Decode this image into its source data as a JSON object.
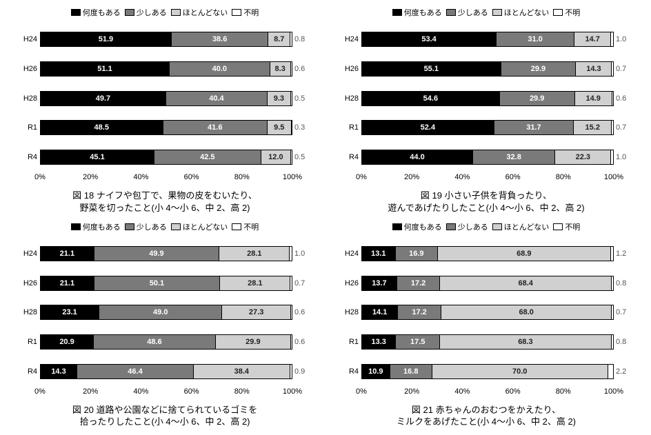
{
  "legend": {
    "items": [
      {
        "label": "何度もある",
        "color": "#000000",
        "text": "#ffffff"
      },
      {
        "label": "少しある",
        "color": "#7a7a7a",
        "text": "#ffffff"
      },
      {
        "label": "ほとんどない",
        "color": "#d0d0d0",
        "text": "#222222"
      },
      {
        "label": "不明",
        "color": "#ffffff",
        "text": "#555555"
      }
    ]
  },
  "xaxis": {
    "ticks": [
      "0%",
      "20%",
      "40%",
      "60%",
      "80%",
      "100%"
    ],
    "positions": [
      0,
      20,
      40,
      60,
      80,
      100
    ]
  },
  "panels": [
    {
      "id": "fig18",
      "caption_line1": "図 18 ナイフや包丁で、果物の皮をむいたり、",
      "caption_line2": "野菜を切ったこと(小 4～小 6、中 2、高 2)",
      "categories": [
        "H24",
        "H26",
        "H28",
        "R1",
        "R4"
      ],
      "rows": [
        {
          "values": [
            51.9,
            38.6,
            8.7,
            0.8
          ]
        },
        {
          "values": [
            51.1,
            40.0,
            8.3,
            0.6
          ]
        },
        {
          "values": [
            49.7,
            40.4,
            9.3,
            0.5
          ]
        },
        {
          "values": [
            48.5,
            41.6,
            9.5,
            0.3
          ]
        },
        {
          "values": [
            45.1,
            42.5,
            12.0,
            0.5
          ]
        }
      ]
    },
    {
      "id": "fig19",
      "caption_line1": "図 19 小さい子供を背負ったり、",
      "caption_line2": "遊んであげたりしたこと(小 4～小 6、中 2、高 2)",
      "categories": [
        "H24",
        "H26",
        "H28",
        "R1",
        "R4"
      ],
      "rows": [
        {
          "values": [
            53.4,
            31.0,
            14.7,
            1.0
          ]
        },
        {
          "values": [
            55.1,
            29.9,
            14.3,
            0.7
          ]
        },
        {
          "values": [
            54.6,
            29.9,
            14.9,
            0.6
          ]
        },
        {
          "values": [
            52.4,
            31.7,
            15.2,
            0.7
          ]
        },
        {
          "values": [
            44.0,
            32.8,
            22.3,
            1.0
          ]
        }
      ]
    },
    {
      "id": "fig20",
      "caption_line1": "図 20 道路や公園などに捨てられているゴミを",
      "caption_line2": "拾ったりしたこと(小 4～小 6、中 2、高 2)",
      "categories": [
        "H24",
        "H26",
        "H28",
        "R1",
        "R4"
      ],
      "rows": [
        {
          "values": [
            21.1,
            49.9,
            28.1,
            1.0
          ]
        },
        {
          "values": [
            21.1,
            50.1,
            28.1,
            0.7
          ]
        },
        {
          "values": [
            23.1,
            49.0,
            27.3,
            0.6
          ]
        },
        {
          "values": [
            20.9,
            48.6,
            29.9,
            0.6
          ]
        },
        {
          "values": [
            14.3,
            46.4,
            38.4,
            0.9
          ]
        }
      ]
    },
    {
      "id": "fig21",
      "caption_line1": "図 21 赤ちゃんのおむつをかえたり、",
      "caption_line2": "ミルクをあげたこと(小 4～小 6、中 2、高 2)",
      "categories": [
        "H24",
        "H26",
        "H28",
        "R1",
        "R4"
      ],
      "rows": [
        {
          "values": [
            13.1,
            16.9,
            68.9,
            1.2
          ]
        },
        {
          "values": [
            13.7,
            17.2,
            68.4,
            0.8
          ]
        },
        {
          "values": [
            14.1,
            17.2,
            68.0,
            0.7
          ]
        },
        {
          "values": [
            13.3,
            17.5,
            68.3,
            0.8
          ]
        },
        {
          "values": [
            10.9,
            16.8,
            70.0,
            2.2
          ]
        }
      ]
    }
  ]
}
